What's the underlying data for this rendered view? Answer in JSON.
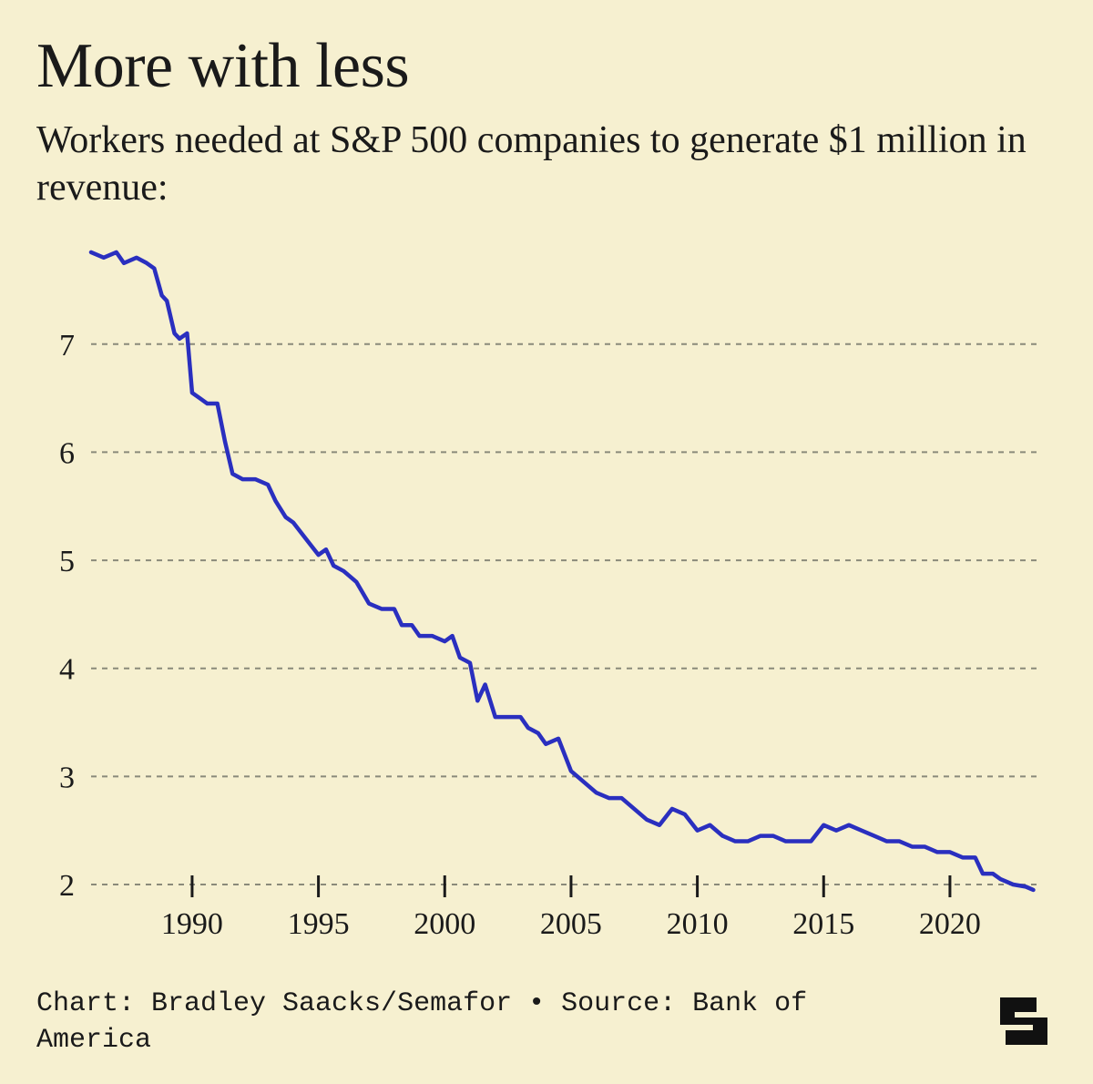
{
  "background_color": "#f6f0d0",
  "text_color": "#1a1a1a",
  "title": "More with less",
  "title_fontsize": 70,
  "subtitle": "Workers needed at S&P 500 companies to generate $1 million in revenue:",
  "subtitle_fontsize": 42,
  "source_line": "Chart: Bradley Saacks/Semafor • Source: Bank of America",
  "source_fontsize": 30,
  "chart": {
    "type": "line",
    "line_color": "#2a2fbf",
    "line_width": 4.5,
    "grid_color": "#8a8a7a",
    "grid_dash": "6 6",
    "tick_color": "#1a1a1a",
    "axis_label_fontsize": 34,
    "x": {
      "min": 1986,
      "max": 2023.5,
      "ticks": [
        1990,
        1995,
        2000,
        2005,
        2010,
        2015,
        2020
      ]
    },
    "y": {
      "min": 2,
      "max": 7.9,
      "ticks": [
        2,
        3,
        4,
        5,
        6,
        7
      ]
    },
    "series": [
      {
        "x": 1986.0,
        "y": 7.85
      },
      {
        "x": 1986.5,
        "y": 7.8
      },
      {
        "x": 1987.0,
        "y": 7.85
      },
      {
        "x": 1987.3,
        "y": 7.75
      },
      {
        "x": 1987.8,
        "y": 7.8
      },
      {
        "x": 1988.2,
        "y": 7.75
      },
      {
        "x": 1988.5,
        "y": 7.7
      },
      {
        "x": 1988.8,
        "y": 7.45
      },
      {
        "x": 1989.0,
        "y": 7.4
      },
      {
        "x": 1989.3,
        "y": 7.1
      },
      {
        "x": 1989.5,
        "y": 7.05
      },
      {
        "x": 1989.8,
        "y": 7.1
      },
      {
        "x": 1990.0,
        "y": 6.55
      },
      {
        "x": 1990.3,
        "y": 6.5
      },
      {
        "x": 1990.6,
        "y": 6.45
      },
      {
        "x": 1991.0,
        "y": 6.45
      },
      {
        "x": 1991.3,
        "y": 6.1
      },
      {
        "x": 1991.6,
        "y": 5.8
      },
      {
        "x": 1992.0,
        "y": 5.75
      },
      {
        "x": 1992.5,
        "y": 5.75
      },
      {
        "x": 1993.0,
        "y": 5.7
      },
      {
        "x": 1993.3,
        "y": 5.55
      },
      {
        "x": 1993.7,
        "y": 5.4
      },
      {
        "x": 1994.0,
        "y": 5.35
      },
      {
        "x": 1994.5,
        "y": 5.2
      },
      {
        "x": 1995.0,
        "y": 5.05
      },
      {
        "x": 1995.3,
        "y": 5.1
      },
      {
        "x": 1995.6,
        "y": 4.95
      },
      {
        "x": 1996.0,
        "y": 4.9
      },
      {
        "x": 1996.5,
        "y": 4.8
      },
      {
        "x": 1997.0,
        "y": 4.6
      },
      {
        "x": 1997.5,
        "y": 4.55
      },
      {
        "x": 1998.0,
        "y": 4.55
      },
      {
        "x": 1998.3,
        "y": 4.4
      },
      {
        "x": 1998.7,
        "y": 4.4
      },
      {
        "x": 1999.0,
        "y": 4.3
      },
      {
        "x": 1999.5,
        "y": 4.3
      },
      {
        "x": 2000.0,
        "y": 4.25
      },
      {
        "x": 2000.3,
        "y": 4.3
      },
      {
        "x": 2000.6,
        "y": 4.1
      },
      {
        "x": 2001.0,
        "y": 4.05
      },
      {
        "x": 2001.3,
        "y": 3.7
      },
      {
        "x": 2001.6,
        "y": 3.85
      },
      {
        "x": 2002.0,
        "y": 3.55
      },
      {
        "x": 2002.5,
        "y": 3.55
      },
      {
        "x": 2003.0,
        "y": 3.55
      },
      {
        "x": 2003.3,
        "y": 3.45
      },
      {
        "x": 2003.7,
        "y": 3.4
      },
      {
        "x": 2004.0,
        "y": 3.3
      },
      {
        "x": 2004.5,
        "y": 3.35
      },
      {
        "x": 2005.0,
        "y": 3.05
      },
      {
        "x": 2005.5,
        "y": 2.95
      },
      {
        "x": 2006.0,
        "y": 2.85
      },
      {
        "x": 2006.5,
        "y": 2.8
      },
      {
        "x": 2007.0,
        "y": 2.8
      },
      {
        "x": 2007.5,
        "y": 2.7
      },
      {
        "x": 2008.0,
        "y": 2.6
      },
      {
        "x": 2008.5,
        "y": 2.55
      },
      {
        "x": 2009.0,
        "y": 2.7
      },
      {
        "x": 2009.5,
        "y": 2.65
      },
      {
        "x": 2010.0,
        "y": 2.5
      },
      {
        "x": 2010.5,
        "y": 2.55
      },
      {
        "x": 2011.0,
        "y": 2.45
      },
      {
        "x": 2011.5,
        "y": 2.4
      },
      {
        "x": 2012.0,
        "y": 2.4
      },
      {
        "x": 2012.5,
        "y": 2.45
      },
      {
        "x": 2013.0,
        "y": 2.45
      },
      {
        "x": 2013.5,
        "y": 2.4
      },
      {
        "x": 2014.0,
        "y": 2.4
      },
      {
        "x": 2014.5,
        "y": 2.4
      },
      {
        "x": 2015.0,
        "y": 2.55
      },
      {
        "x": 2015.5,
        "y": 2.5
      },
      {
        "x": 2016.0,
        "y": 2.55
      },
      {
        "x": 2016.5,
        "y": 2.5
      },
      {
        "x": 2017.0,
        "y": 2.45
      },
      {
        "x": 2017.5,
        "y": 2.4
      },
      {
        "x": 2018.0,
        "y": 2.4
      },
      {
        "x": 2018.5,
        "y": 2.35
      },
      {
        "x": 2019.0,
        "y": 2.35
      },
      {
        "x": 2019.5,
        "y": 2.3
      },
      {
        "x": 2020.0,
        "y": 2.3
      },
      {
        "x": 2020.5,
        "y": 2.25
      },
      {
        "x": 2021.0,
        "y": 2.25
      },
      {
        "x": 2021.3,
        "y": 2.1
      },
      {
        "x": 2021.7,
        "y": 2.1
      },
      {
        "x": 2022.0,
        "y": 2.05
      },
      {
        "x": 2022.5,
        "y": 2.0
      },
      {
        "x": 2023.0,
        "y": 1.98
      },
      {
        "x": 2023.3,
        "y": 1.95
      }
    ]
  },
  "logo_color": "#111111"
}
